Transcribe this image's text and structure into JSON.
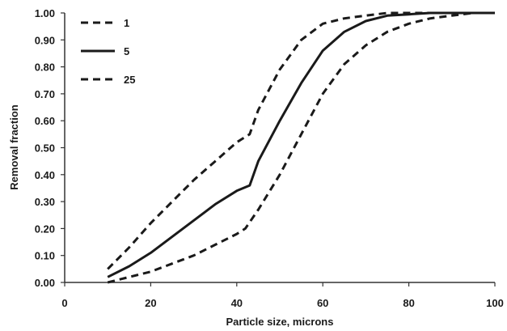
{
  "chart_data": {
    "type": "line",
    "title": "",
    "xlabel": "Particle size, microns",
    "ylabel": "Removal fraction",
    "xlim": [
      0,
      100
    ],
    "ylim": [
      0,
      1
    ],
    "x_ticks": [
      "0",
      "20",
      "40",
      "60",
      "80",
      "100"
    ],
    "y_ticks": [
      "0.00",
      "0.10",
      "0.20",
      "0.30",
      "0.40",
      "0.50",
      "0.60",
      "0.70",
      "0.80",
      "0.90",
      "1.00"
    ],
    "grid": false,
    "legend_position": "top-left",
    "line_color": "#1a1a1a",
    "series": [
      {
        "name": "1",
        "style": "dashed",
        "x": [
          10,
          15,
          20,
          25,
          30,
          35,
          40,
          42,
          45,
          50,
          55,
          60,
          65,
          70,
          75,
          80,
          85,
          90,
          95,
          100
        ],
        "y": [
          0.0,
          0.02,
          0.04,
          0.07,
          0.1,
          0.14,
          0.18,
          0.2,
          0.27,
          0.4,
          0.55,
          0.7,
          0.81,
          0.88,
          0.93,
          0.96,
          0.98,
          0.99,
          1.0,
          1.0
        ]
      },
      {
        "name": "5",
        "style": "solid",
        "x": [
          10,
          15,
          20,
          25,
          30,
          35,
          40,
          43,
          45,
          50,
          55,
          60,
          65,
          70,
          75,
          80,
          85,
          90,
          95,
          100
        ],
        "y": [
          0.02,
          0.06,
          0.11,
          0.17,
          0.23,
          0.29,
          0.34,
          0.36,
          0.45,
          0.6,
          0.74,
          0.86,
          0.93,
          0.97,
          0.99,
          0.995,
          1.0,
          1.0,
          1.0,
          1.0
        ]
      },
      {
        "name": "25",
        "style": "dashed",
        "x": [
          10,
          15,
          20,
          25,
          30,
          35,
          40,
          43,
          45,
          50,
          55,
          60,
          65,
          70,
          75,
          80,
          85,
          90,
          95,
          100
        ],
        "y": [
          0.05,
          0.13,
          0.22,
          0.3,
          0.38,
          0.45,
          0.52,
          0.55,
          0.64,
          0.79,
          0.9,
          0.96,
          0.98,
          0.99,
          1.0,
          1.0,
          1.0,
          1.0,
          1.0,
          1.0
        ]
      }
    ]
  }
}
